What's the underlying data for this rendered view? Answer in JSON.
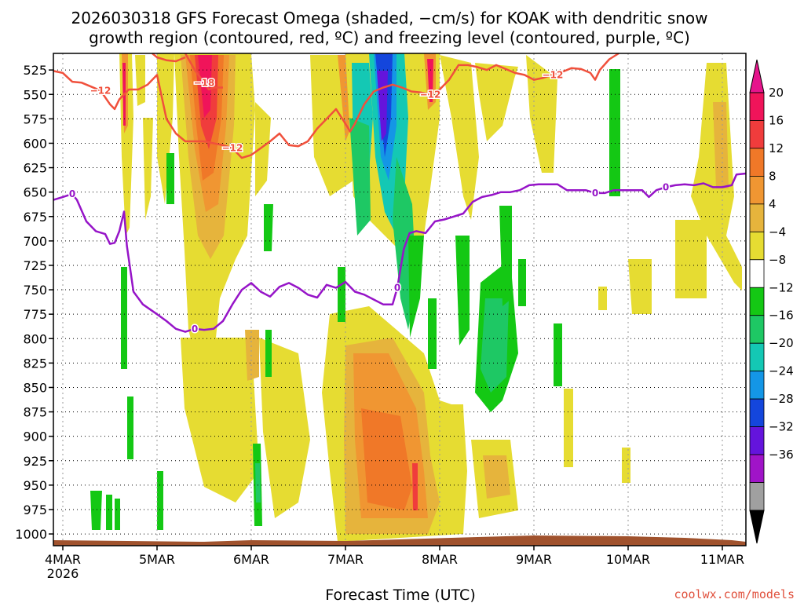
{
  "chart_data": {
    "type": "heatmap",
    "title_line1": "2026030318 GFS Forecast Omega (shaded, −cm/s) for KOAK with dendritic snow",
    "title_line2": "growth region (contoured, red, ºC) and freezing level (contoured, purple, ºC)",
    "xlabel": "Forecast Time (UTC)",
    "credit": "coolwx.com/models",
    "x_day_range": [
      3.9,
      11.25
    ],
    "x_ticks": [
      {
        "day": 4,
        "label": "4MAR",
        "sublabel": "2026"
      },
      {
        "day": 5,
        "label": "5MAR",
        "sublabel": ""
      },
      {
        "day": 6,
        "label": "6MAR",
        "sublabel": ""
      },
      {
        "day": 7,
        "label": "7MAR",
        "sublabel": ""
      },
      {
        "day": 8,
        "label": "8MAR",
        "sublabel": ""
      },
      {
        "day": 9,
        "label": "9MAR",
        "sublabel": ""
      },
      {
        "day": 10,
        "label": "10MAR",
        "sublabel": ""
      },
      {
        "day": 11,
        "label": "11MAR",
        "sublabel": ""
      }
    ],
    "y_pressure_range": [
      1012,
      508
    ],
    "y_ticks": [
      {
        "p": 525,
        "label": "525"
      },
      {
        "p": 550,
        "label": "550"
      },
      {
        "p": 575,
        "label": "575"
      },
      {
        "p": 600,
        "label": "600"
      },
      {
        "p": 625,
        "label": "625"
      },
      {
        "p": 650,
        "label": "650"
      },
      {
        "p": 675,
        "label": "675"
      },
      {
        "p": 700,
        "label": "700"
      },
      {
        "p": 725,
        "label": "725"
      },
      {
        "p": 750,
        "label": "750"
      },
      {
        "p": 775,
        "label": "775"
      },
      {
        "p": 800,
        "label": "800"
      },
      {
        "p": 825,
        "label": "825"
      },
      {
        "p": 850,
        "label": "850"
      },
      {
        "p": 875,
        "label": "875"
      },
      {
        "p": 900,
        "label": "900"
      },
      {
        "p": 925,
        "label": "925"
      },
      {
        "p": 950,
        "label": "950"
      },
      {
        "p": 975,
        "label": "975"
      },
      {
        "p": 1000,
        "label": "1000"
      }
    ],
    "colorbar": {
      "labels": [
        "20",
        "16",
        "12",
        "8",
        "4",
        "−4",
        "−8",
        "−12",
        "−16",
        "−20",
        "−24",
        "−28",
        "−32",
        "−36"
      ],
      "colors": [
        "#f0145a",
        "#f03c3c",
        "#f07828",
        "#f09632",
        "#e6b43c",
        "#e6dc32",
        "#ffffff",
        "#14c814",
        "#1ec864",
        "#14c8b4",
        "#1496e6",
        "#1446dc",
        "#6414dc",
        "#a014c8",
        "#a0a0a0"
      ],
      "top_arrow_color": "#e6148c",
      "bottom_arrow_color": "#000000"
    },
    "ground_color": "#a0522d",
    "freezing_level": {
      "label": "0",
      "color": "#9614c8",
      "points": [
        [
          3.9,
          658
        ],
        [
          4.0,
          655
        ],
        [
          4.1,
          652
        ],
        [
          4.15,
          658
        ],
        [
          4.25,
          680
        ],
        [
          4.35,
          690
        ],
        [
          4.45,
          693
        ],
        [
          4.5,
          703
        ],
        [
          4.55,
          702
        ],
        [
          4.6,
          690
        ],
        [
          4.65,
          670
        ],
        [
          4.68,
          705
        ],
        [
          4.75,
          752
        ],
        [
          4.85,
          765
        ],
        [
          5.0,
          775
        ],
        [
          5.1,
          782
        ],
        [
          5.2,
          790
        ],
        [
          5.3,
          793
        ],
        [
          5.4,
          790
        ],
        [
          5.5,
          791
        ],
        [
          5.6,
          790
        ],
        [
          5.7,
          782
        ],
        [
          5.8,
          765
        ],
        [
          5.9,
          750
        ],
        [
          6.0,
          743
        ],
        [
          6.1,
          752
        ],
        [
          6.2,
          757
        ],
        [
          6.3,
          747
        ],
        [
          6.4,
          743
        ],
        [
          6.5,
          748
        ],
        [
          6.6,
          755
        ],
        [
          6.7,
          758
        ],
        [
          6.8,
          745
        ],
        [
          6.9,
          748
        ],
        [
          7.0,
          742
        ],
        [
          7.1,
          752
        ],
        [
          7.2,
          755
        ],
        [
          7.3,
          760
        ],
        [
          7.4,
          765
        ],
        [
          7.5,
          765
        ],
        [
          7.55,
          748
        ],
        [
          7.62,
          708
        ],
        [
          7.68,
          692
        ],
        [
          7.75,
          690
        ],
        [
          7.85,
          692
        ],
        [
          7.95,
          680
        ],
        [
          8.05,
          678
        ],
        [
          8.15,
          675
        ],
        [
          8.25,
          672
        ],
        [
          8.35,
          660
        ],
        [
          8.45,
          655
        ],
        [
          8.55,
          653
        ],
        [
          8.65,
          650
        ],
        [
          8.75,
          650
        ],
        [
          8.85,
          648
        ],
        [
          8.95,
          643
        ],
        [
          9.05,
          642
        ],
        [
          9.15,
          642
        ],
        [
          9.25,
          642
        ],
        [
          9.35,
          648
        ],
        [
          9.45,
          648
        ],
        [
          9.55,
          648
        ],
        [
          9.65,
          651
        ],
        [
          9.75,
          651
        ],
        [
          9.85,
          648
        ],
        [
          9.95,
          648
        ],
        [
          10.05,
          648
        ],
        [
          10.15,
          648
        ],
        [
          10.22,
          655
        ],
        [
          10.3,
          648
        ],
        [
          10.4,
          645
        ],
        [
          10.5,
          643
        ],
        [
          10.6,
          642
        ],
        [
          10.7,
          643
        ],
        [
          10.8,
          641
        ],
        [
          10.9,
          645
        ],
        [
          11.0,
          645
        ],
        [
          11.1,
          643
        ],
        [
          11.15,
          632
        ],
        [
          11.25,
          631
        ]
      ]
    },
    "isotherm_minus12": {
      "label": "−12",
      "color": "#f0503c",
      "points": [
        [
          3.9,
          526
        ],
        [
          4.0,
          528
        ],
        [
          4.1,
          537
        ],
        [
          4.2,
          538
        ],
        [
          4.3,
          542
        ],
        [
          4.4,
          546
        ],
        [
          4.5,
          560
        ],
        [
          4.55,
          565
        ],
        [
          4.6,
          555
        ],
        [
          4.7,
          545
        ],
        [
          4.8,
          545
        ],
        [
          4.9,
          540
        ],
        [
          5.0,
          530
        ],
        [
          5.1,
          575
        ],
        [
          5.2,
          590
        ],
        [
          5.3,
          598
        ],
        [
          5.4,
          598
        ],
        [
          5.5,
          598
        ],
        [
          5.6,
          600
        ],
        [
          5.7,
          602
        ],
        [
          5.8,
          605
        ],
        [
          5.9,
          615
        ],
        [
          6.0,
          612
        ],
        [
          6.1,
          605
        ],
        [
          6.2,
          598
        ],
        [
          6.3,
          590
        ],
        [
          6.4,
          602
        ],
        [
          6.5,
          603
        ],
        [
          6.6,
          598
        ],
        [
          6.7,
          585
        ],
        [
          6.8,
          575
        ],
        [
          6.9,
          565
        ],
        [
          7.0,
          580
        ],
        [
          7.05,
          588
        ],
        [
          7.1,
          580
        ],
        [
          7.2,
          560
        ],
        [
          7.3,
          547
        ],
        [
          7.4,
          543
        ],
        [
          7.5,
          540
        ],
        [
          7.6,
          543
        ],
        [
          7.7,
          547
        ],
        [
          7.8,
          548
        ],
        [
          7.9,
          550
        ],
        [
          8.0,
          545
        ],
        [
          8.1,
          535
        ],
        [
          8.2,
          520
        ],
        [
          8.3,
          520
        ],
        [
          8.4,
          522
        ],
        [
          8.5,
          525
        ],
        [
          8.6,
          520
        ],
        [
          8.7,
          524
        ],
        [
          8.8,
          528
        ],
        [
          8.9,
          530
        ],
        [
          9.0,
          535
        ],
        [
          9.1,
          533
        ],
        [
          9.2,
          530
        ],
        [
          9.3,
          527
        ],
        [
          9.4,
          523
        ],
        [
          9.5,
          524
        ],
        [
          9.6,
          528
        ],
        [
          9.65,
          535
        ],
        [
          9.7,
          525
        ],
        [
          9.8,
          514
        ],
        [
          9.9,
          508
        ]
      ]
    },
    "isotherm_minus18": {
      "label": "−18",
      "color": "#f0503c",
      "points": [
        [
          5.3,
          508
        ],
        [
          5.4,
          525
        ],
        [
          5.5,
          538
        ],
        [
          5.55,
          545
        ],
        [
          5.6,
          543
        ],
        [
          5.7,
          543
        ]
      ]
    },
    "isotherm_top_fragment": {
      "color": "#f0503c",
      "points": [
        [
          4.95,
          508
        ],
        [
          5.0,
          512
        ],
        [
          5.1,
          515
        ],
        [
          5.2,
          516
        ],
        [
          5.3,
          512
        ]
      ]
    }
  }
}
